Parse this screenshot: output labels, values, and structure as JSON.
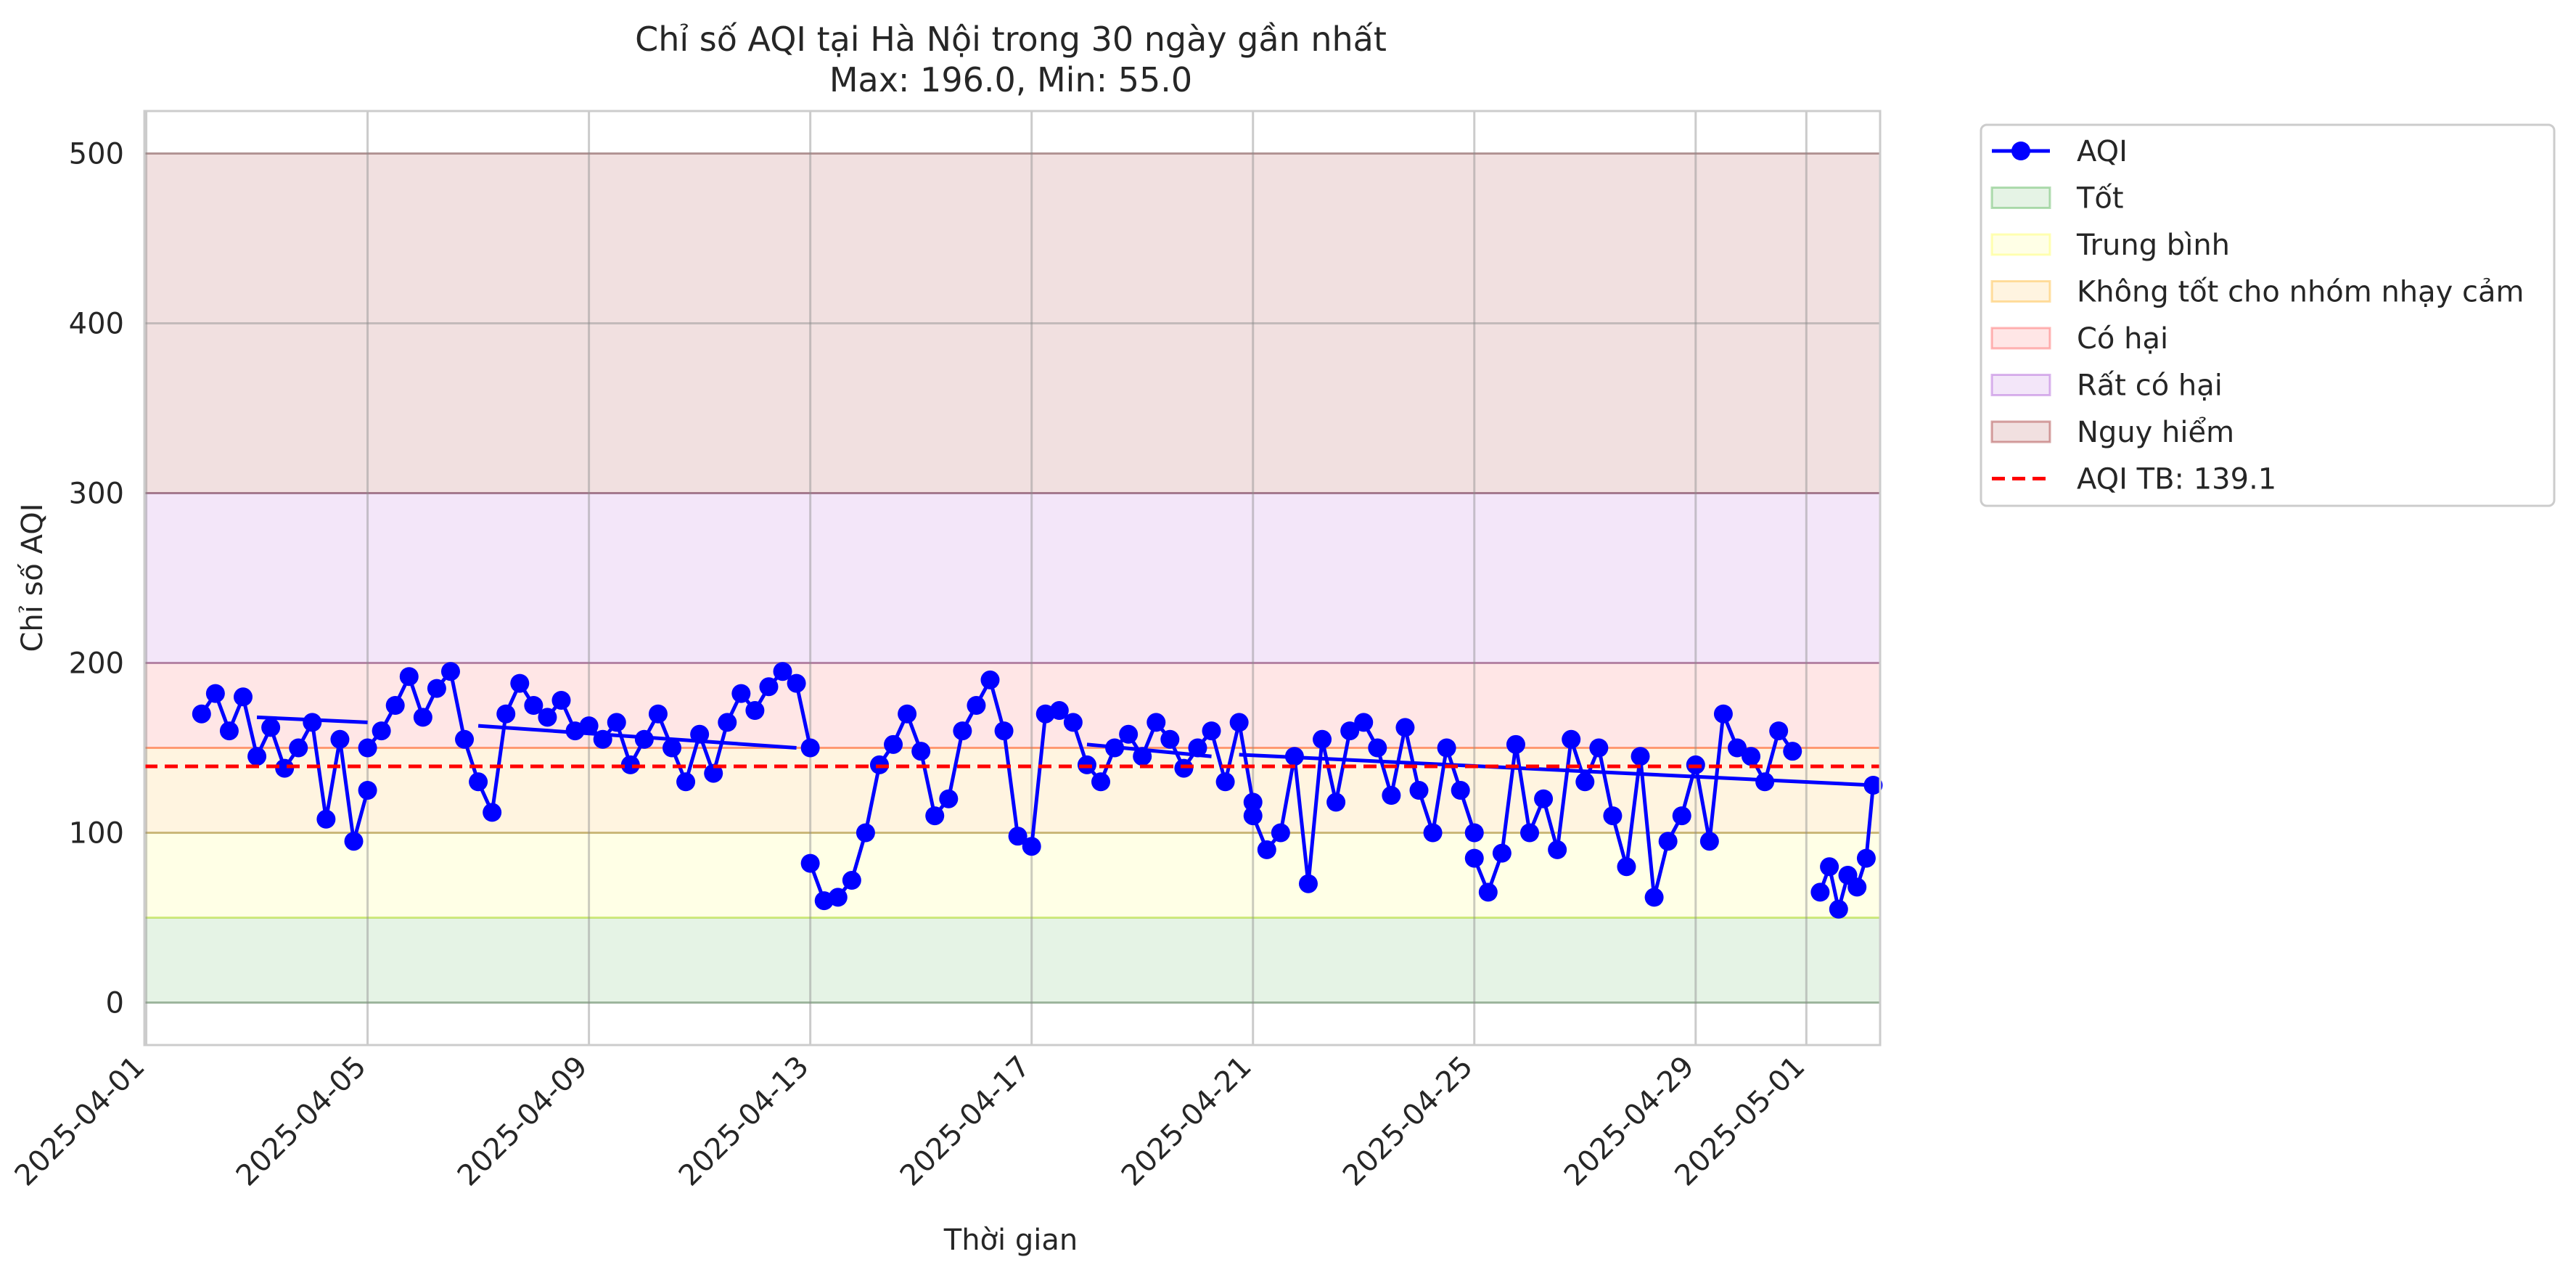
{
  "chart_data": {
    "type": "line",
    "title_line1": "Chỉ số AQI tại Hà Nội trong 30 ngày gần nhất",
    "title_line2": "Max: 196.0, Min: 55.0",
    "xlabel": "Thời gian",
    "ylabel": "Chỉ số AQI",
    "x_range": [
      "2025-03-31T23:12",
      "2025-05-02T08:00"
    ],
    "ylim": [
      -25,
      525
    ],
    "y_ticks": [
      0,
      100,
      200,
      300,
      400,
      500
    ],
    "y_tick_labels": [
      "0",
      "100",
      "200",
      "300",
      "400",
      "500"
    ],
    "x_ticks": [
      "2025-04-01",
      "2025-04-05",
      "2025-04-09",
      "2025-04-13",
      "2025-04-17",
      "2025-04-21",
      "2025-04-25",
      "2025-04-29",
      "2025-05-01"
    ],
    "x_tick_labels": [
      "2025-04-01",
      "2025-04-05",
      "2025-04-09",
      "2025-04-13",
      "2025-04-17",
      "2025-04-21",
      "2025-04-25",
      "2025-04-29",
      "2025-05-01"
    ],
    "grid": true,
    "legend_position": "outside-top-right",
    "bands": [
      {
        "label": "Tốt",
        "from": 0,
        "to": 50,
        "color": "#2ca02c"
      },
      {
        "label": "Trung bình",
        "from": 50,
        "to": 100,
        "color": "#ffff33"
      },
      {
        "label": "Không tốt cho nhóm nhạy cảm",
        "from": 100,
        "to": 150,
        "color": "#ffa500"
      },
      {
        "label": "Có hại",
        "from": 150,
        "to": 200,
        "color": "#ff3333"
      },
      {
        "label": "Rất có hại",
        "from": 200,
        "to": 300,
        "color": "#9932cc"
      },
      {
        "label": "Nguy hiểm",
        "from": 300,
        "to": 500,
        "color": "#8b0000"
      }
    ],
    "series": [
      {
        "name": "AQI",
        "color": "#0000ff",
        "segments": [
          {
            "x": [
              "2025-04-02T00:00",
              "2025-04-02T06:00",
              "2025-04-02T12:00",
              "2025-04-02T18:00",
              "2025-04-03T00:00",
              "2025-04-03T06:00",
              "2025-04-03T12:00",
              "2025-04-03T18:00",
              "2025-04-04T00:00",
              "2025-04-04T06:00",
              "2025-04-04T12:00",
              "2025-04-04T18:00",
              "2025-04-05T00:00"
            ],
            "y": [
              170,
              182,
              160,
              180,
              145,
              162,
              138,
              150,
              165,
              108,
              155,
              95,
              125
            ]
          },
          {
            "x": [
              "2025-04-05T00:00",
              "2025-04-05T06:00",
              "2025-04-05T12:00",
              "2025-04-05T18:00",
              "2025-04-06T00:00",
              "2025-04-06T06:00",
              "2025-04-06T12:00",
              "2025-04-06T18:00",
              "2025-04-07T00:00",
              "2025-04-07T06:00",
              "2025-04-07T12:00",
              "2025-04-07T18:00",
              "2025-04-08T00:00",
              "2025-04-08T06:00",
              "2025-04-08T12:00",
              "2025-04-08T18:00",
              "2025-04-09T00:00",
              "2025-04-09T06:00",
              "2025-04-09T12:00",
              "2025-04-09T18:00",
              "2025-04-10T00:00",
              "2025-04-10T06:00",
              "2025-04-10T12:00",
              "2025-04-10T18:00",
              "2025-04-11T00:00",
              "2025-04-11T06:00",
              "2025-04-11T12:00",
              "2025-04-11T18:00",
              "2025-04-12T00:00",
              "2025-04-12T06:00",
              "2025-04-12T12:00",
              "2025-04-12T18:00",
              "2025-04-13T00:00"
            ],
            "y": [
              150,
              160,
              175,
              192,
              168,
              185,
              195,
              155,
              130,
              112,
              170,
              188,
              175,
              168,
              178,
              160,
              163,
              155,
              165,
              140,
              155,
              170,
              150,
              130,
              158,
              135,
              165,
              182,
              172,
              186,
              195,
              188,
              150
            ]
          },
          {
            "x": [
              "2025-04-13T00:00",
              "2025-04-13T06:00",
              "2025-04-13T12:00",
              "2025-04-13T18:00",
              "2025-04-14T00:00",
              "2025-04-14T06:00",
              "2025-04-14T12:00",
              "2025-04-14T18:00",
              "2025-04-15T00:00",
              "2025-04-15T06:00",
              "2025-04-15T12:00",
              "2025-04-15T18:00",
              "2025-04-16T00:00",
              "2025-04-16T06:00",
              "2025-04-16T12:00",
              "2025-04-16T18:00",
              "2025-04-17T00:00",
              "2025-04-17T06:00",
              "2025-04-17T12:00",
              "2025-04-17T18:00",
              "2025-04-18T00:00",
              "2025-04-18T06:00",
              "2025-04-18T12:00",
              "2025-04-18T18:00",
              "2025-04-19T00:00",
              "2025-04-19T06:00",
              "2025-04-19T12:00",
              "2025-04-19T18:00",
              "2025-04-20T00:00",
              "2025-04-20T06:00",
              "2025-04-20T12:00",
              "2025-04-20T18:00",
              "2025-04-21T00:00"
            ],
            "y": [
              82,
              60,
              62,
              72,
              100,
              140,
              152,
              170,
              148,
              110,
              120,
              160,
              175,
              190,
              160,
              98,
              92,
              170,
              172,
              165,
              140,
              130,
              150,
              158,
              145,
              165,
              155,
              138,
              150,
              160,
              130,
              165,
              118
            ]
          },
          {
            "x": [
              "2025-04-21T00:00",
              "2025-04-21T06:00",
              "2025-04-21T12:00",
              "2025-04-21T18:00",
              "2025-04-22T00:00",
              "2025-04-22T06:00",
              "2025-04-22T12:00",
              "2025-04-22T18:00",
              "2025-04-23T00:00",
              "2025-04-23T06:00",
              "2025-04-23T12:00",
              "2025-04-23T18:00",
              "2025-04-24T00:00",
              "2025-04-24T06:00",
              "2025-04-24T12:00",
              "2025-04-24T18:00",
              "2025-04-25T00:00"
            ],
            "y": [
              110,
              90,
              100,
              145,
              70,
              155,
              118,
              160,
              165,
              150,
              122,
              162,
              125,
              100,
              150,
              125,
              100
            ]
          },
          {
            "x": [
              "2025-04-25T00:00",
              "2025-04-25T06:00",
              "2025-04-25T12:00",
              "2025-04-25T18:00",
              "2025-04-26T00:00",
              "2025-04-26T06:00",
              "2025-04-26T12:00",
              "2025-04-26T18:00",
              "2025-04-27T00:00",
              "2025-04-27T06:00",
              "2025-04-27T12:00",
              "2025-04-27T18:00",
              "2025-04-28T00:00",
              "2025-04-28T06:00",
              "2025-04-28T12:00",
              "2025-04-28T18:00",
              "2025-04-29T00:00",
              "2025-04-29T06:00",
              "2025-04-29T12:00",
              "2025-04-29T18:00",
              "2025-04-30T00:00",
              "2025-04-30T06:00",
              "2025-04-30T12:00",
              "2025-04-30T18:00"
            ],
            "y": [
              85,
              65,
              88,
              152,
              100,
              120,
              90,
              155,
              130,
              150,
              110,
              80,
              145,
              62,
              95,
              110,
              140,
              95,
              170,
              150,
              145,
              130,
              160,
              148
            ]
          },
          {
            "x": [
              "2025-05-01T06:00",
              "2025-05-01T10:00",
              "2025-05-01T14:00",
              "2025-05-01T18:00",
              "2025-05-01T22:00",
              "2025-05-02T02:00",
              "2025-05-02T05:00"
            ],
            "y": [
              65,
              80,
              55,
              75,
              68,
              85,
              128
            ]
          }
        ]
      }
    ],
    "backtrack_lines": [
      {
        "x": [
          "2025-04-03T00:00",
          "2025-04-05T00:00"
        ],
        "y": [
          168,
          165
        ]
      },
      {
        "x": [
          "2025-04-07T00:00",
          "2025-04-12T18:00"
        ],
        "y": [
          163,
          150
        ]
      },
      {
        "x": [
          "2025-04-18T00:00",
          "2025-04-20T06:00"
        ],
        "y": [
          152,
          145
        ]
      },
      {
        "x": [
          "2025-04-20T18:00",
          "2025-05-02T05:00"
        ],
        "y": [
          146,
          128
        ]
      }
    ],
    "mean_line": {
      "label": "AQI TB: 139.1",
      "value": 139.1,
      "color": "#ff0000",
      "style": "dashed"
    },
    "legend": [
      "AQI",
      "Tốt",
      "Trung bình",
      "Không tốt cho nhóm nhạy cảm",
      "Có hại",
      "Rất có hại",
      "Nguy hiểm",
      "AQI TB: 139.1"
    ]
  }
}
